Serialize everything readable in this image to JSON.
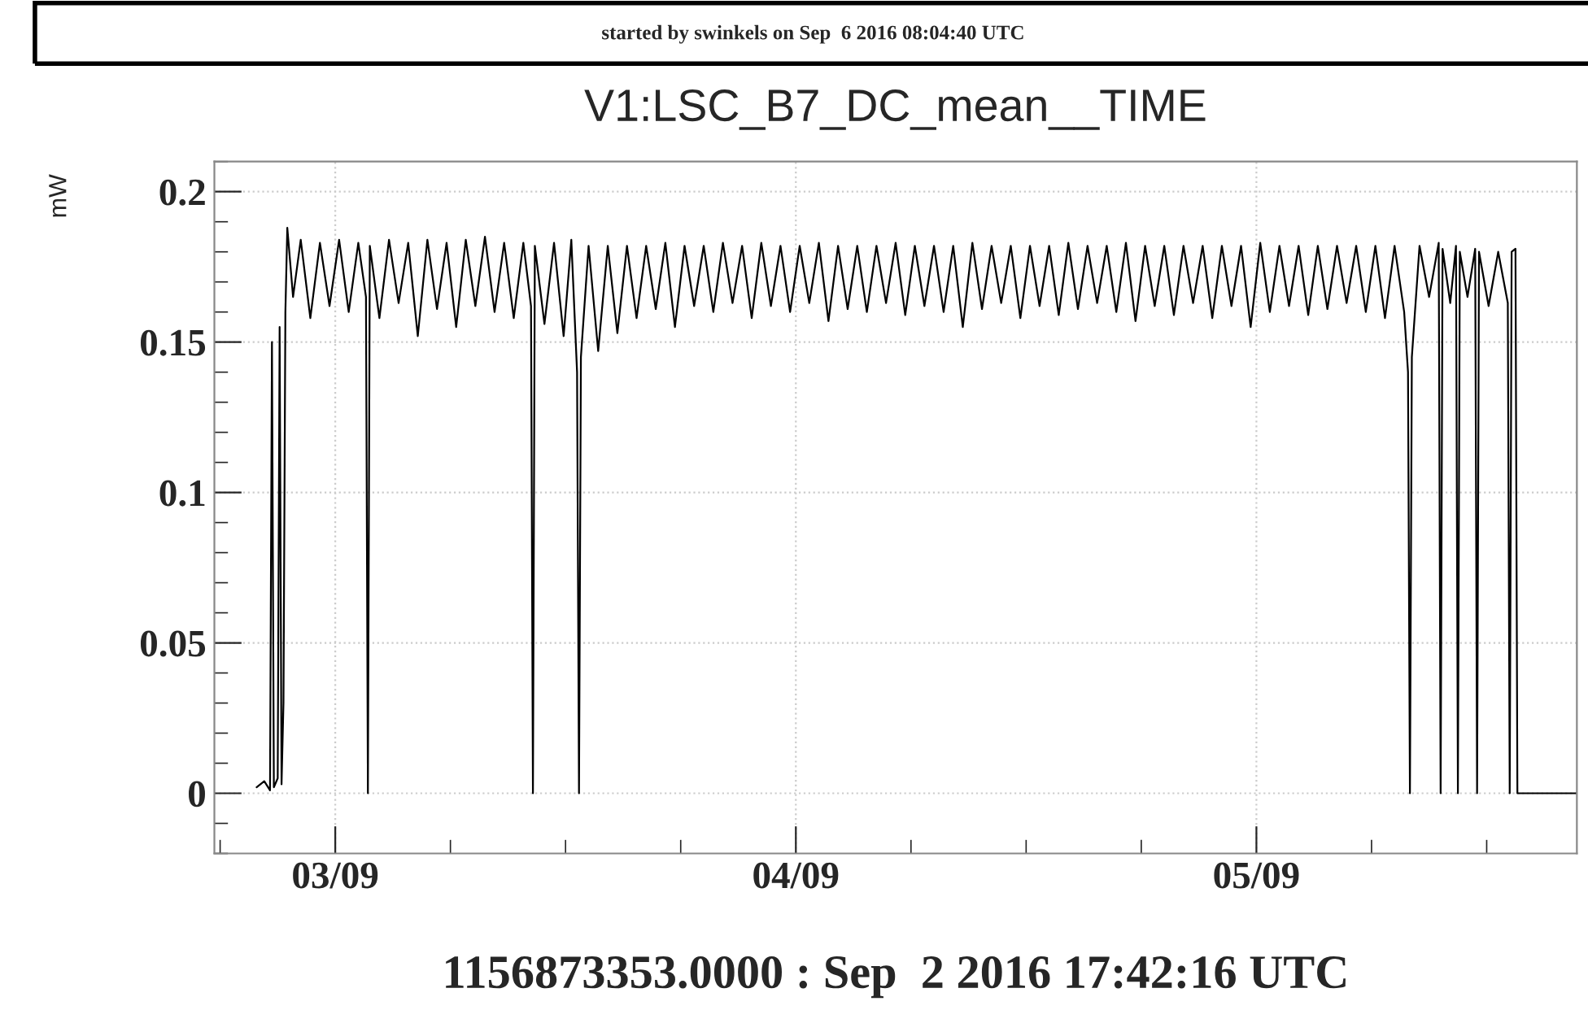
{
  "chart_data": {
    "type": "line",
    "title": "V1:LSC_B7_DC_mean__TIME",
    "ylabel": "mW",
    "xlabel": "1156873353.0000 : Sep  2 2016 17:42:16 UTC",
    "annotations": [
      "started by swinkels on Sep  6 2016 08:04:40 UTC"
    ],
    "xlim": [
      "2016-09-02T17:42",
      "2016-09-05T16:42"
    ],
    "ylim": [
      -0.02,
      0.21
    ],
    "xticks": [
      {
        "value": "2016-09-03",
        "label": "03/09"
      },
      {
        "value": "2016-09-04",
        "label": "04/09"
      },
      {
        "value": "2016-09-05",
        "label": "05/09"
      }
    ],
    "yticks": [
      0,
      0.05,
      0.1,
      0.15,
      0.2
    ],
    "grid": true,
    "marker": "none",
    "line_style": "solid",
    "series": [
      {
        "color": "#000000",
        "x": [
          "2016-09-02T19:54",
          "2016-09-02T20:18",
          "2016-09-02T20:36",
          "2016-09-02T20:42",
          "2016-09-02T20:48",
          "2016-09-02T21:00",
          "2016-09-02T21:06",
          "2016-09-02T21:12",
          "2016-09-02T21:18",
          "2016-09-02T21:24",
          "2016-09-02T21:30",
          "2016-09-02T21:48",
          "2016-09-02T22:12",
          "2016-09-02T22:42",
          "2016-09-02T23:12",
          "2016-09-02T23:42",
          "2016-09-03T00:12",
          "2016-09-03T00:42",
          "2016-09-03T01:12",
          "2016-09-03T01:36",
          "2016-09-03T01:42",
          "2016-09-03T01:48",
          "2016-09-03T02:18",
          "2016-09-03T02:48",
          "2016-09-03T03:18",
          "2016-09-03T03:48",
          "2016-09-03T04:18",
          "2016-09-03T04:48",
          "2016-09-03T05:18",
          "2016-09-03T05:48",
          "2016-09-03T06:18",
          "2016-09-03T06:48",
          "2016-09-03T07:18",
          "2016-09-03T07:48",
          "2016-09-03T08:18",
          "2016-09-03T08:48",
          "2016-09-03T09:18",
          "2016-09-03T09:48",
          "2016-09-03T10:12",
          "2016-09-03T10:18",
          "2016-09-03T10:24",
          "2016-09-03T10:54",
          "2016-09-03T11:24",
          "2016-09-03T11:54",
          "2016-09-03T12:18",
          "2016-09-03T12:36",
          "2016-09-03T12:42",
          "2016-09-03T12:48",
          "2016-09-03T13:12",
          "2016-09-03T13:42",
          "2016-09-03T14:12",
          "2016-09-03T14:42",
          "2016-09-03T15:12",
          "2016-09-03T15:42",
          "2016-09-03T16:12",
          "2016-09-03T16:42",
          "2016-09-03T17:12",
          "2016-09-03T17:42",
          "2016-09-03T18:12",
          "2016-09-03T18:42",
          "2016-09-03T19:12",
          "2016-09-03T19:42",
          "2016-09-03T20:12",
          "2016-09-03T20:42",
          "2016-09-03T21:12",
          "2016-09-03T21:42",
          "2016-09-03T22:12",
          "2016-09-03T22:42",
          "2016-09-03T23:12",
          "2016-09-03T23:42",
          "2016-09-04T00:12",
          "2016-09-04T00:42",
          "2016-09-04T01:12",
          "2016-09-04T01:42",
          "2016-09-04T02:12",
          "2016-09-04T02:42",
          "2016-09-04T03:12",
          "2016-09-04T03:42",
          "2016-09-04T04:12",
          "2016-09-04T04:42",
          "2016-09-04T05:12",
          "2016-09-04T05:42",
          "2016-09-04T06:12",
          "2016-09-04T06:42",
          "2016-09-04T07:12",
          "2016-09-04T07:42",
          "2016-09-04T08:12",
          "2016-09-04T08:42",
          "2016-09-04T09:12",
          "2016-09-04T09:42",
          "2016-09-04T10:12",
          "2016-09-04T10:42",
          "2016-09-04T11:12",
          "2016-09-04T11:42",
          "2016-09-04T12:12",
          "2016-09-04T12:42",
          "2016-09-04T13:12",
          "2016-09-04T13:42",
          "2016-09-04T14:12",
          "2016-09-04T14:42",
          "2016-09-04T15:12",
          "2016-09-04T15:42",
          "2016-09-04T16:12",
          "2016-09-04T16:42",
          "2016-09-04T17:12",
          "2016-09-04T17:42",
          "2016-09-04T18:12",
          "2016-09-04T18:42",
          "2016-09-04T19:12",
          "2016-09-04T19:42",
          "2016-09-04T20:12",
          "2016-09-04T20:42",
          "2016-09-04T21:12",
          "2016-09-04T21:42",
          "2016-09-04T22:12",
          "2016-09-04T22:42",
          "2016-09-04T23:12",
          "2016-09-04T23:42",
          "2016-09-05T00:12",
          "2016-09-05T00:42",
          "2016-09-05T01:12",
          "2016-09-05T01:42",
          "2016-09-05T02:12",
          "2016-09-05T02:42",
          "2016-09-05T03:12",
          "2016-09-05T03:42",
          "2016-09-05T04:12",
          "2016-09-05T04:42",
          "2016-09-05T05:12",
          "2016-09-05T05:42",
          "2016-09-05T06:12",
          "2016-09-05T06:42",
          "2016-09-05T07:12",
          "2016-09-05T07:42",
          "2016-09-05T07:54",
          "2016-09-05T08:00",
          "2016-09-05T08:06",
          "2016-09-05T08:30",
          "2016-09-05T09:00",
          "2016-09-05T09:30",
          "2016-09-05T09:36",
          "2016-09-05T09:42",
          "2016-09-05T10:06",
          "2016-09-05T10:24",
          "2016-09-05T10:30",
          "2016-09-05T10:36",
          "2016-09-05T11:00",
          "2016-09-05T11:24",
          "2016-09-05T11:30",
          "2016-09-05T11:36",
          "2016-09-05T12:06",
          "2016-09-05T12:36",
          "2016-09-05T13:06",
          "2016-09-05T13:12",
          "2016-09-05T13:18",
          "2016-09-05T13:30",
          "2016-09-05T13:36",
          "2016-09-05T16:42"
        ],
        "values": [
          0.002,
          0.004,
          0.001,
          0.15,
          0.002,
          0.005,
          0.155,
          0.003,
          0.03,
          0.16,
          0.188,
          0.165,
          0.184,
          0.158,
          0.183,
          0.162,
          0.184,
          0.16,
          0.183,
          0.165,
          0,
          0.182,
          0.158,
          0.184,
          0.163,
          0.183,
          0.152,
          0.184,
          0.161,
          0.183,
          0.155,
          0.184,
          0.162,
          0.185,
          0.16,
          0.183,
          0.158,
          0.183,
          0.162,
          0,
          0.182,
          0.156,
          0.183,
          0.152,
          0.184,
          0.14,
          0,
          0.145,
          0.182,
          0.147,
          0.182,
          0.153,
          0.182,
          0.158,
          0.182,
          0.161,
          0.183,
          0.155,
          0.182,
          0.162,
          0.182,
          0.16,
          0.183,
          0.163,
          0.182,
          0.158,
          0.183,
          0.162,
          0.182,
          0.16,
          0.182,
          0.163,
          0.183,
          0.157,
          0.182,
          0.161,
          0.182,
          0.16,
          0.182,
          0.163,
          0.183,
          0.159,
          0.182,
          0.162,
          0.182,
          0.16,
          0.182,
          0.155,
          0.183,
          0.161,
          0.182,
          0.163,
          0.182,
          0.158,
          0.182,
          0.162,
          0.182,
          0.159,
          0.183,
          0.161,
          0.182,
          0.163,
          0.182,
          0.16,
          0.183,
          0.157,
          0.182,
          0.162,
          0.182,
          0.159,
          0.182,
          0.163,
          0.182,
          0.158,
          0.182,
          0.162,
          0.182,
          0.155,
          0.183,
          0.16,
          0.182,
          0.162,
          0.182,
          0.159,
          0.182,
          0.161,
          0.182,
          0.163,
          0.182,
          0.16,
          0.182,
          0.158,
          0.182,
          0.16,
          0.14,
          0,
          0.145,
          0.182,
          0.165,
          0.183,
          0,
          0.181,
          0.163,
          0.182,
          0,
          0.18,
          0.165,
          0.181,
          0,
          0.18,
          0.162,
          0.18,
          0.163,
          0,
          0.18,
          0.181,
          0,
          0
        ]
      }
    ]
  }
}
